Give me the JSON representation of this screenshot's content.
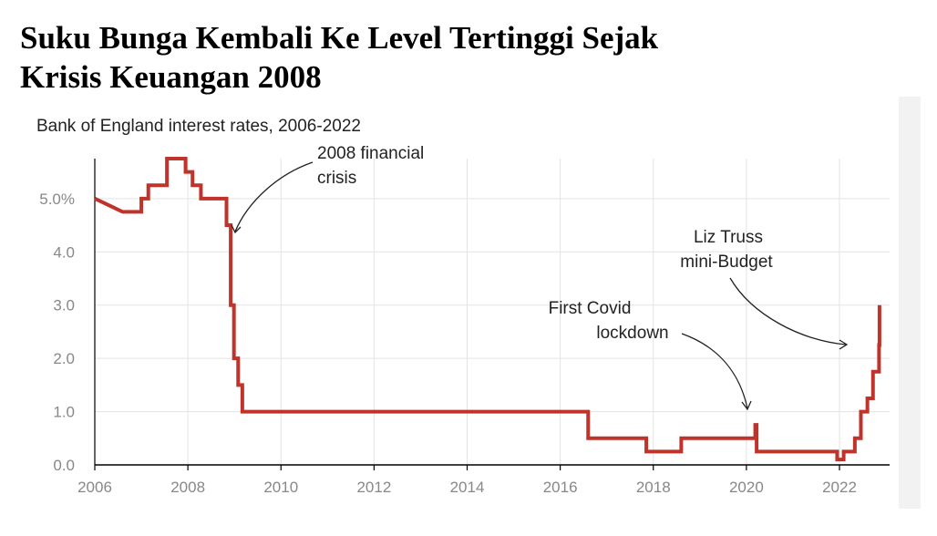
{
  "headline": {
    "line1": "Suku Bunga Kembali Ke Level Tertinggi Sejak",
    "line2": "Krisis Keuangan 2008"
  },
  "colors": {
    "line": "#c0332b",
    "grid": "#e3e3e3",
    "tick_label": "#888888",
    "text": "#222222",
    "panel_shadow": "#f2f2f2"
  },
  "chart_data": {
    "type": "line",
    "title": "Bank of England interest rates, 2006-2022",
    "xlabel": "",
    "ylabel": "",
    "xlim": [
      2006,
      2023.2
    ],
    "ylim": [
      0,
      5.75
    ],
    "grid": true,
    "x_ticks": [
      2006,
      2008,
      2010,
      2012,
      2014,
      2016,
      2018,
      2020,
      2022
    ],
    "y_ticks": [
      0,
      1,
      2,
      3,
      4,
      5
    ],
    "y_tick_labels": [
      "0.0",
      "1.0",
      "2.0",
      "3.0",
      "4.0",
      "5.0%"
    ],
    "series": [
      {
        "step": true,
        "x": [
          2006.0,
          2006.6,
          2006.9,
          2007.0,
          2007.15,
          2007.55,
          2007.95,
          2008.1,
          2008.28,
          2008.83,
          2008.92,
          2008.99,
          2009.08,
          2009.17,
          2016.6,
          2017.85,
          2018.6,
          2020.19,
          2020.22,
          2021.95,
          2022.09,
          2022.33,
          2022.46,
          2022.6,
          2022.72,
          2022.85
        ],
        "y": [
          5.0,
          4.75,
          4.75,
          5.0,
          5.25,
          5.75,
          5.5,
          5.25,
          5.0,
          4.5,
          3.0,
          2.0,
          1.5,
          1.0,
          0.5,
          0.25,
          0.5,
          0.75,
          0.25,
          0.1,
          0.25,
          0.5,
          1.0,
          1.25,
          1.75,
          2.25
        ],
        "end_x": 2022.86,
        "end_y": 3.0
      }
    ],
    "annotations": [
      {
        "lines": [
          "2008 financial",
          "crisis"
        ]
      },
      {
        "lines": [
          "First Covid",
          "lockdown"
        ]
      },
      {
        "lines": [
          "Liz Truss",
          "mini-Budget"
        ]
      }
    ]
  }
}
